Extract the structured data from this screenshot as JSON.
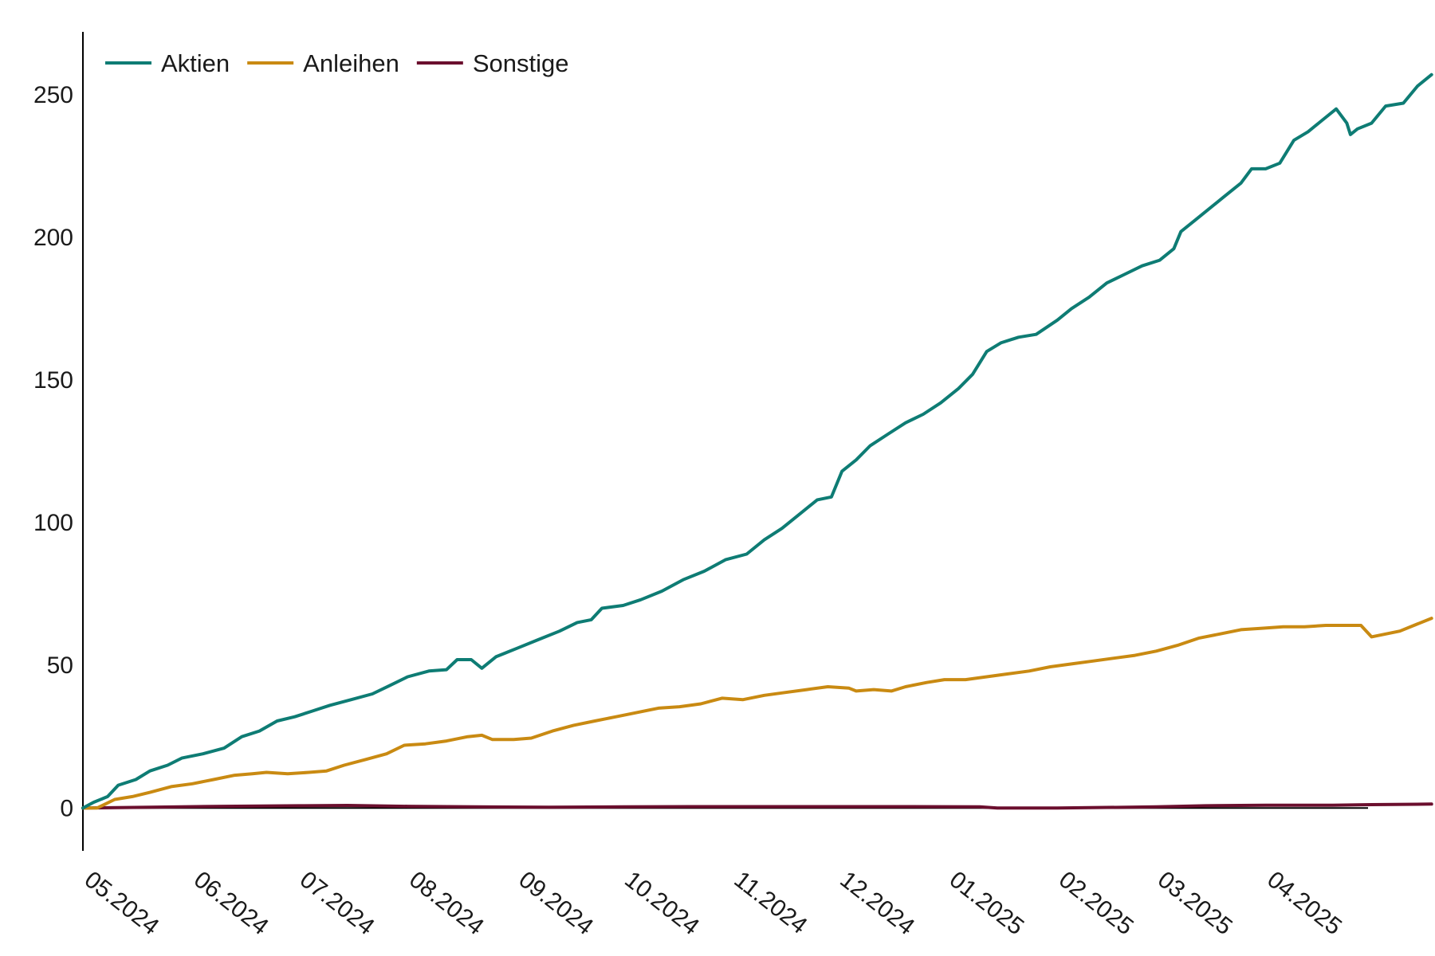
{
  "chart_data": {
    "type": "line",
    "title": "",
    "xlabel": "",
    "ylabel": "",
    "ylim": [
      -15,
      272
    ],
    "xlim": [
      "2024-05-01",
      "2025-04-30"
    ],
    "yticks": [
      0,
      50,
      100,
      150,
      200,
      250
    ],
    "xticks": [
      {
        "date": "2024-05-01",
        "label": "05.2024"
      },
      {
        "date": "2024-06-01",
        "label": "06.2024"
      },
      {
        "date": "2024-07-01",
        "label": "07.2024"
      },
      {
        "date": "2024-08-01",
        "label": "08.2024"
      },
      {
        "date": "2024-09-01",
        "label": "09.2024"
      },
      {
        "date": "2024-10-01",
        "label": "10.2024"
      },
      {
        "date": "2024-11-01",
        "label": "11.2024"
      },
      {
        "date": "2024-12-01",
        "label": "12.2024"
      },
      {
        "date": "2025-01-01",
        "label": "01.2025"
      },
      {
        "date": "2025-02-01",
        "label": "02.2025"
      },
      {
        "date": "2025-03-01",
        "label": "03.2025"
      },
      {
        "date": "2025-04-01",
        "label": "04.2025"
      }
    ],
    "grid": false,
    "legend": "top-left",
    "series": [
      {
        "name": "Aktien",
        "color": "#0e7c74",
        "points": [
          [
            "2024-05-01",
            0
          ],
          [
            "2024-05-04",
            2
          ],
          [
            "2024-05-08",
            4
          ],
          [
            "2024-05-11",
            8
          ],
          [
            "2024-05-16",
            10
          ],
          [
            "2024-05-20",
            13
          ],
          [
            "2024-05-25",
            15
          ],
          [
            "2024-05-29",
            17.5
          ],
          [
            "2024-06-04",
            19
          ],
          [
            "2024-06-10",
            21
          ],
          [
            "2024-06-15",
            25
          ],
          [
            "2024-06-20",
            27
          ],
          [
            "2024-06-25",
            30.5
          ],
          [
            "2024-06-30",
            32
          ],
          [
            "2024-07-05",
            34
          ],
          [
            "2024-07-10",
            36
          ],
          [
            "2024-07-16",
            38
          ],
          [
            "2024-07-22",
            40
          ],
          [
            "2024-07-27",
            43
          ],
          [
            "2024-08-01",
            46
          ],
          [
            "2024-08-07",
            48
          ],
          [
            "2024-08-12",
            48.5
          ],
          [
            "2024-08-15",
            52
          ],
          [
            "2024-08-19",
            52
          ],
          [
            "2024-08-22",
            49
          ],
          [
            "2024-08-26",
            53
          ],
          [
            "2024-09-01",
            56
          ],
          [
            "2024-09-07",
            59
          ],
          [
            "2024-09-13",
            62
          ],
          [
            "2024-09-18",
            65
          ],
          [
            "2024-09-22",
            66
          ],
          [
            "2024-09-25",
            70
          ],
          [
            "2024-10-01",
            71
          ],
          [
            "2024-10-06",
            73
          ],
          [
            "2024-10-12",
            76
          ],
          [
            "2024-10-18",
            80
          ],
          [
            "2024-10-24",
            83
          ],
          [
            "2024-10-30",
            87
          ],
          [
            "2024-11-05",
            89
          ],
          [
            "2024-11-10",
            94
          ],
          [
            "2024-11-15",
            98
          ],
          [
            "2024-11-20",
            103
          ],
          [
            "2024-11-25",
            108
          ],
          [
            "2024-11-29",
            109
          ],
          [
            "2024-12-02",
            118
          ],
          [
            "2024-12-06",
            122
          ],
          [
            "2024-12-10",
            127
          ],
          [
            "2024-12-15",
            131
          ],
          [
            "2024-12-20",
            135
          ],
          [
            "2024-12-25",
            138
          ],
          [
            "2024-12-30",
            142
          ],
          [
            "2025-01-04",
            147
          ],
          [
            "2025-01-08",
            152
          ],
          [
            "2025-01-12",
            160
          ],
          [
            "2025-01-16",
            163
          ],
          [
            "2025-01-21",
            165
          ],
          [
            "2025-01-26",
            166
          ],
          [
            "2025-02-01",
            171
          ],
          [
            "2025-02-05",
            175
          ],
          [
            "2025-02-10",
            179
          ],
          [
            "2025-02-15",
            184
          ],
          [
            "2025-02-20",
            187
          ],
          [
            "2025-02-25",
            190
          ],
          [
            "2025-03-02",
            192
          ],
          [
            "2025-03-06",
            196
          ],
          [
            "2025-03-08",
            202
          ],
          [
            "2025-03-12",
            206
          ],
          [
            "2025-03-16",
            210
          ],
          [
            "2025-03-20",
            214
          ],
          [
            "2025-03-25",
            219
          ],
          [
            "2025-03-28",
            224
          ],
          [
            "2025-04-01",
            224
          ],
          [
            "2025-04-05",
            226
          ],
          [
            "2025-04-09",
            234
          ],
          [
            "2025-04-13",
            237
          ],
          [
            "2025-04-17",
            241
          ],
          [
            "2025-04-21",
            245
          ],
          [
            "2025-04-24",
            240
          ],
          [
            "2025-04-25",
            236
          ],
          [
            "2025-04-27",
            238
          ],
          [
            "2025-05-01",
            240
          ],
          [
            "2025-05-05",
            246
          ],
          [
            "2025-05-10",
            247
          ],
          [
            "2025-05-14",
            253
          ],
          [
            "2025-05-18",
            257
          ]
        ]
      },
      {
        "name": "Anleihen",
        "color": "#c98a12",
        "points": [
          [
            "2024-05-01",
            0
          ],
          [
            "2024-05-05",
            0
          ],
          [
            "2024-05-10",
            3
          ],
          [
            "2024-05-15",
            4
          ],
          [
            "2024-05-20",
            5.5
          ],
          [
            "2024-05-26",
            7.5
          ],
          [
            "2024-06-01",
            8.5
          ],
          [
            "2024-06-07",
            10
          ],
          [
            "2024-06-13",
            11.5
          ],
          [
            "2024-06-18",
            12
          ],
          [
            "2024-06-22",
            12.5
          ],
          [
            "2024-06-28",
            12
          ],
          [
            "2024-07-04",
            12.5
          ],
          [
            "2024-07-09",
            13
          ],
          [
            "2024-07-14",
            15
          ],
          [
            "2024-07-20",
            17
          ],
          [
            "2024-07-26",
            19
          ],
          [
            "2024-07-31",
            22
          ],
          [
            "2024-08-06",
            22.5
          ],
          [
            "2024-08-12",
            23.5
          ],
          [
            "2024-08-18",
            25
          ],
          [
            "2024-08-22",
            25.5
          ],
          [
            "2024-08-25",
            24
          ],
          [
            "2024-08-31",
            24
          ],
          [
            "2024-09-05",
            24.5
          ],
          [
            "2024-09-11",
            27
          ],
          [
            "2024-09-17",
            29
          ],
          [
            "2024-09-23",
            30.5
          ],
          [
            "2024-09-29",
            32
          ],
          [
            "2024-10-05",
            33.5
          ],
          [
            "2024-10-11",
            35
          ],
          [
            "2024-10-17",
            35.5
          ],
          [
            "2024-10-23",
            36.5
          ],
          [
            "2024-10-29",
            38.5
          ],
          [
            "2024-11-04",
            38
          ],
          [
            "2024-11-10",
            39.5
          ],
          [
            "2024-11-16",
            40.5
          ],
          [
            "2024-11-22",
            41.5
          ],
          [
            "2024-11-28",
            42.5
          ],
          [
            "2024-12-04",
            42
          ],
          [
            "2024-12-06",
            41
          ],
          [
            "2024-12-11",
            41.5
          ],
          [
            "2024-12-16",
            41
          ],
          [
            "2024-12-20",
            42.5
          ],
          [
            "2024-12-26",
            44
          ],
          [
            "2024-12-31",
            45
          ],
          [
            "2025-01-06",
            45
          ],
          [
            "2025-01-12",
            46
          ],
          [
            "2025-01-18",
            47
          ],
          [
            "2025-01-24",
            48
          ],
          [
            "2025-01-30",
            49.5
          ],
          [
            "2025-02-05",
            50.5
          ],
          [
            "2025-02-11",
            51.5
          ],
          [
            "2025-02-17",
            52.5
          ],
          [
            "2025-02-23",
            53.5
          ],
          [
            "2025-03-01",
            55
          ],
          [
            "2025-03-07",
            57
          ],
          [
            "2025-03-13",
            59.5
          ],
          [
            "2025-03-19",
            61
          ],
          [
            "2025-03-25",
            62.5
          ],
          [
            "2025-03-31",
            63
          ],
          [
            "2025-04-06",
            63.5
          ],
          [
            "2025-04-12",
            63.5
          ],
          [
            "2025-04-18",
            64
          ],
          [
            "2025-04-24",
            64
          ],
          [
            "2025-04-28",
            64
          ],
          [
            "2025-05-01",
            60
          ],
          [
            "2025-05-05",
            61
          ],
          [
            "2025-05-09",
            62
          ],
          [
            "2025-05-13",
            64
          ],
          [
            "2025-05-18",
            66.5
          ]
        ]
      },
      {
        "name": "Sonstige",
        "color": "#6b0f2e",
        "points": [
          [
            "2024-05-01",
            0
          ],
          [
            "2024-05-20",
            0.3
          ],
          [
            "2024-06-10",
            0.6
          ],
          [
            "2024-07-01",
            0.8
          ],
          [
            "2024-07-15",
            0.9
          ],
          [
            "2024-08-01",
            0.6
          ],
          [
            "2024-08-20",
            0.4
          ],
          [
            "2024-09-10",
            0.3
          ],
          [
            "2024-10-01",
            0.4
          ],
          [
            "2024-10-20",
            0.5
          ],
          [
            "2024-11-10",
            0.5
          ],
          [
            "2024-12-01",
            0.5
          ],
          [
            "2024-12-20",
            0.5
          ],
          [
            "2025-01-10",
            0.4
          ],
          [
            "2025-01-15",
            0
          ],
          [
            "2025-02-01",
            0
          ],
          [
            "2025-03-01",
            0.4
          ],
          [
            "2025-03-15",
            0.8
          ],
          [
            "2025-04-01",
            1.0
          ],
          [
            "2025-04-20",
            1.0
          ],
          [
            "2025-05-01",
            1.2
          ],
          [
            "2025-05-18",
            1.4
          ]
        ]
      }
    ]
  }
}
